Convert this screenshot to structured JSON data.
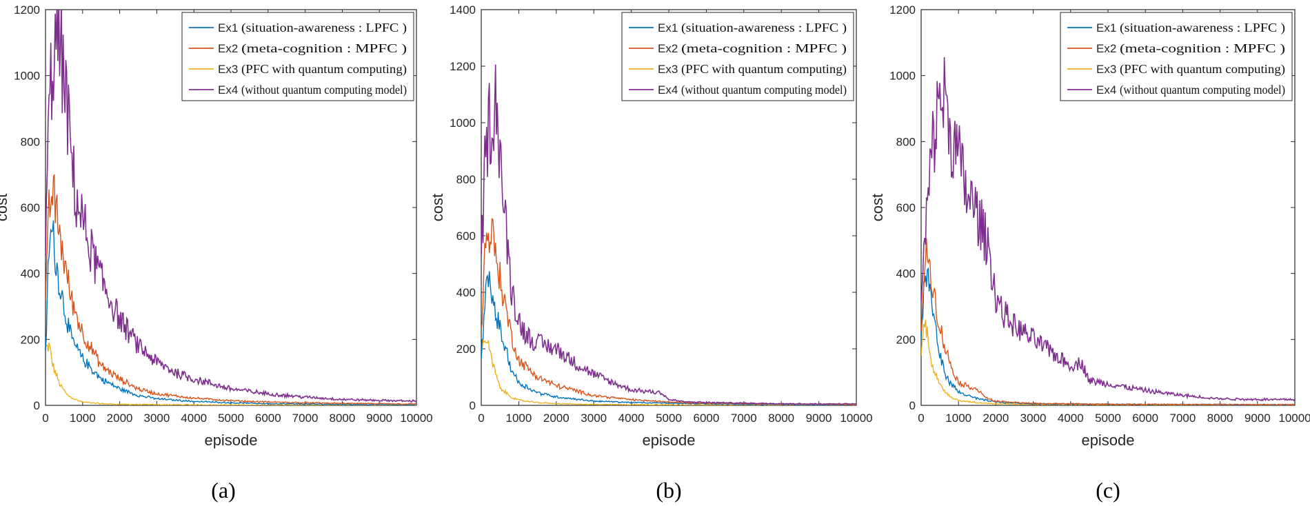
{
  "colors": {
    "Ex1": "#0072BD",
    "Ex2": "#D95319",
    "Ex3": "#EDB120",
    "Ex4": "#7E2F8E"
  },
  "chart_data": [
    {
      "type": "line",
      "caption": "(a)",
      "xlabel": "episode",
      "ylabel": "cost",
      "xlim": [
        0,
        10000
      ],
      "ylim": [
        0,
        1200
      ],
      "xticks": [
        "0",
        "1000",
        "2000",
        "3000",
        "4000",
        "5000",
        "6000",
        "7000",
        "8000",
        "9000",
        "10000"
      ],
      "yticks": [
        "0",
        "200",
        "400",
        "600",
        "800",
        "1000",
        "1200"
      ],
      "legend_position": "top-right",
      "series": [
        {
          "name": "Ex1",
          "label": "Ex1",
          "desc": "(situation-awareness : LPFC )",
          "x": [
            0,
            100,
            200,
            300,
            500,
            700,
            1000,
            1500,
            2000,
            2500,
            3000,
            4000,
            5000,
            6000,
            8000,
            10000
          ],
          "y": [
            150,
            500,
            520,
            420,
            300,
            200,
            140,
            80,
            50,
            30,
            20,
            12,
            8,
            5,
            3,
            2
          ]
        },
        {
          "name": "Ex2",
          "label": "Ex2",
          "desc": "(meta-cognition : MPFC )",
          "x": [
            0,
            100,
            200,
            300,
            500,
            700,
            1000,
            1500,
            2000,
            2500,
            3000,
            4000,
            5000,
            6000,
            8000,
            10000
          ],
          "y": [
            300,
            600,
            650,
            580,
            440,
            320,
            220,
            120,
            80,
            50,
            35,
            22,
            14,
            10,
            6,
            4
          ]
        },
        {
          "name": "Ex3",
          "label": "Ex3",
          "desc": "(PFC with  quantum computing)",
          "x": [
            0,
            100,
            200,
            400,
            600,
            800,
            1000,
            1500,
            2000,
            3000,
            5000,
            10000
          ],
          "y": [
            170,
            180,
            120,
            60,
            30,
            18,
            10,
            5,
            3,
            2,
            1,
            1
          ]
        },
        {
          "name": "Ex4",
          "label": "Ex4",
          "desc": "(without quantum computing model)",
          "x": [
            0,
            100,
            200,
            300,
            400,
            500,
            600,
            700,
            800,
            1000,
            1200,
            1500,
            2000,
            2500,
            3000,
            3500,
            4000,
            5000,
            6000,
            7000,
            8000,
            9000,
            10000
          ],
          "y": [
            450,
            920,
            1050,
            1100,
            1080,
            1000,
            870,
            760,
            640,
            560,
            480,
            380,
            260,
            180,
            130,
            100,
            80,
            50,
            35,
            25,
            18,
            15,
            13
          ]
        }
      ]
    },
    {
      "type": "line",
      "caption": "(b)",
      "xlabel": "episode",
      "ylabel": "cost",
      "xlim": [
        0,
        10000
      ],
      "ylim": [
        0,
        1400
      ],
      "xticks": [
        "0",
        "1000",
        "2000",
        "3000",
        "4000",
        "5000",
        "6000",
        "7000",
        "8000",
        "9000",
        "10000"
      ],
      "yticks": [
        "0",
        "200",
        "400",
        "600",
        "800",
        "1000",
        "1200",
        "1400"
      ],
      "legend_position": "top-right",
      "series": [
        {
          "name": "Ex1",
          "label": "Ex1",
          "desc": "(situation-awareness : LPFC )",
          "x": [
            0,
            100,
            200,
            300,
            400,
            600,
            800,
            1000,
            1500,
            2000,
            3000,
            4000,
            5000,
            6000,
            8000,
            10000
          ],
          "y": [
            150,
            400,
            430,
            380,
            320,
            220,
            130,
            80,
            45,
            30,
            15,
            10,
            8,
            5,
            3,
            2
          ]
        },
        {
          "name": "Ex2",
          "label": "Ex2",
          "desc": "(meta-cognition : MPFC )",
          "x": [
            0,
            100,
            200,
            300,
            400,
            600,
            800,
            1000,
            1500,
            2000,
            3000,
            4000,
            5000,
            6000,
            8000,
            10000
          ],
          "y": [
            250,
            550,
            620,
            600,
            520,
            380,
            250,
            160,
            100,
            70,
            35,
            20,
            12,
            8,
            5,
            3
          ]
        },
        {
          "name": "Ex3",
          "label": "Ex3",
          "desc": "(PFC with  quantum computing)",
          "x": [
            0,
            100,
            200,
            300,
            500,
            800,
            1000,
            1500,
            2000,
            3000,
            5000,
            10000
          ],
          "y": [
            180,
            250,
            200,
            150,
            60,
            30,
            18,
            10,
            6,
            3,
            2,
            1
          ]
        },
        {
          "name": "Ex4",
          "label": "Ex4",
          "desc": "(without quantum computing model)",
          "x": [
            0,
            100,
            200,
            300,
            400,
            500,
            600,
            700,
            800,
            1000,
            1200,
            1500,
            2000,
            2500,
            3000,
            3500,
            4000,
            4800,
            5000,
            5500,
            6000,
            7000,
            8000,
            9000,
            10000
          ],
          "y": [
            500,
            850,
            1000,
            1020,
            1100,
            900,
            700,
            560,
            420,
            300,
            250,
            220,
            200,
            150,
            110,
            80,
            55,
            45,
            20,
            12,
            10,
            8,
            6,
            5,
            5
          ]
        }
      ]
    },
    {
      "type": "line",
      "caption": "(c)",
      "xlabel": "episode",
      "ylabel": "cost",
      "xlim": [
        0,
        10000
      ],
      "ylim": [
        0,
        1200
      ],
      "xticks": [
        "0",
        "1000",
        "2000",
        "3000",
        "4000",
        "5000",
        "6000",
        "7000",
        "8000",
        "9000",
        "10000"
      ],
      "yticks": [
        "0",
        "200",
        "400",
        "600",
        "800",
        "1000",
        "1200"
      ],
      "legend_position": "top-right",
      "series": [
        {
          "name": "Ex1",
          "label": "Ex1",
          "desc": "(situation-awareness : LPFC )",
          "x": [
            0,
            100,
            200,
            300,
            500,
            700,
            1000,
            1500,
            2000,
            3000,
            5000,
            10000
          ],
          "y": [
            200,
            400,
            380,
            300,
            150,
            80,
            40,
            20,
            10,
            5,
            3,
            2
          ]
        },
        {
          "name": "Ex2",
          "label": "Ex2",
          "desc": "(meta-cognition : MPFC )",
          "x": [
            0,
            100,
            200,
            300,
            400,
            600,
            800,
            1000,
            1200,
            1500,
            1700,
            2000,
            3000,
            5000,
            10000
          ],
          "y": [
            250,
            450,
            450,
            380,
            300,
            190,
            120,
            70,
            60,
            50,
            25,
            12,
            6,
            3,
            2
          ]
        },
        {
          "name": "Ex3",
          "label": "Ex3",
          "desc": "(PFC with  quantum computing)",
          "x": [
            0,
            100,
            200,
            300,
            500,
            800,
            1000,
            1500,
            2000,
            3000,
            10000
          ],
          "y": [
            150,
            260,
            200,
            120,
            60,
            25,
            15,
            8,
            5,
            3,
            1
          ]
        },
        {
          "name": "Ex4",
          "label": "Ex4",
          "desc": "(without quantum computing model)",
          "x": [
            0,
            100,
            200,
            300,
            400,
            500,
            600,
            700,
            800,
            1000,
            1200,
            1500,
            1800,
            2000,
            2200,
            2500,
            3000,
            3500,
            4000,
            4300,
            4500,
            5000,
            6000,
            7000,
            8000,
            9000,
            10000
          ],
          "y": [
            300,
            500,
            650,
            780,
            850,
            950,
            940,
            880,
            820,
            750,
            650,
            580,
            480,
            330,
            280,
            240,
            200,
            160,
            120,
            130,
            75,
            65,
            45,
            30,
            20,
            18,
            18
          ]
        }
      ]
    }
  ]
}
